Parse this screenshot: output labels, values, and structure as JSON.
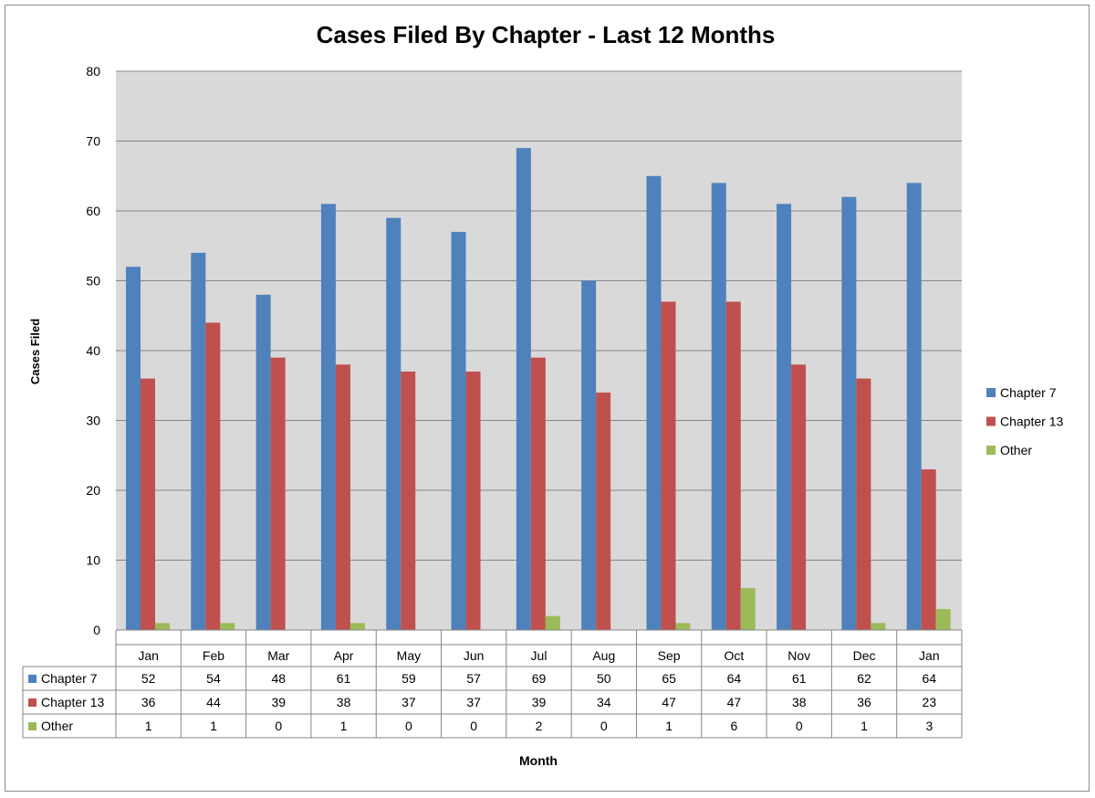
{
  "chart_data": {
    "type": "bar",
    "title": "Cases Filed By Chapter - Last 12 Months",
    "xlabel": "Month",
    "ylabel": "Cases Filed",
    "ylim": [
      0,
      80
    ],
    "yticks": [
      0,
      10,
      20,
      30,
      40,
      50,
      60,
      70,
      80
    ],
    "grid": true,
    "legend_position": "right",
    "categories": [
      "Jan",
      "Feb",
      "Mar",
      "Apr",
      "May",
      "Jun",
      "Jul",
      "Aug",
      "Sep",
      "Oct",
      "Nov",
      "Dec",
      "Jan"
    ],
    "series": [
      {
        "name": "Chapter 7",
        "color": "#4f81bd",
        "values": [
          52,
          54,
          48,
          61,
          59,
          57,
          69,
          50,
          65,
          64,
          61,
          62,
          64
        ]
      },
      {
        "name": "Chapter 13",
        "color": "#c0504d",
        "values": [
          36,
          44,
          39,
          38,
          37,
          37,
          39,
          34,
          47,
          47,
          38,
          36,
          23
        ]
      },
      {
        "name": "Other",
        "color": "#9bbb59",
        "values": [
          1,
          1,
          0,
          1,
          0,
          0,
          2,
          0,
          1,
          6,
          0,
          1,
          3
        ]
      }
    ],
    "data_table": true
  }
}
